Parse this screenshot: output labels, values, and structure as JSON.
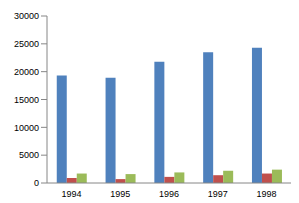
{
  "chart_data": {
    "type": "bar",
    "categories": [
      "1994",
      "1995",
      "1996",
      "1997",
      "1998"
    ],
    "series": [
      {
        "color": "#4f81bd",
        "values": [
          19300,
          18900,
          21800,
          23500,
          24300
        ]
      },
      {
        "color": "#c0504d",
        "values": [
          900,
          700,
          1100,
          1400,
          1700
        ]
      },
      {
        "color": "#9bbb59",
        "values": [
          1700,
          1600,
          1900,
          2200,
          2400
        ]
      }
    ],
    "ylim": [
      0,
      30000
    ],
    "yticks": [
      0,
      5000,
      10000,
      15000,
      20000,
      25000,
      30000
    ],
    "grid": false
  }
}
